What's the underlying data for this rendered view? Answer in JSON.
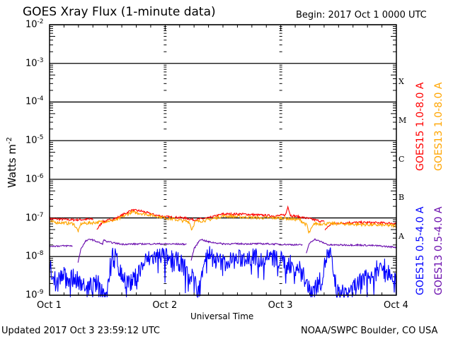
{
  "header": {
    "title": "GOES Xray Flux (1-minute data)",
    "begin": "Begin:  2017 Oct 1 0000 UTC"
  },
  "footer": {
    "updated": "Updated 2017 Oct  3 23:59:12 UTC",
    "source": "NOAA/SWPC Boulder, CO USA"
  },
  "chart_data": {
    "type": "line",
    "title": "GOES Xray Flux (1-minute data)",
    "xlabel": "Universal Time",
    "ylabel": "Watts m-2",
    "ylabel_base": "Watts m",
    "ylabel_exp": "-2",
    "xlim_hours": [
      0,
      72
    ],
    "ylim_log10": [
      -9,
      -2
    ],
    "yscale": "log",
    "x_ticks": [
      {
        "h": 0,
        "label": "Oct 1"
      },
      {
        "h": 24,
        "label": "Oct 2"
      },
      {
        "h": 48,
        "label": "Oct 3"
      },
      {
        "h": 72,
        "label": "Oct 4"
      }
    ],
    "y_ticks": [
      {
        "exp": -2,
        "base": "10",
        "sup": "-2"
      },
      {
        "exp": -3,
        "base": "10",
        "sup": "-3"
      },
      {
        "exp": -4,
        "base": "10",
        "sup": "-4"
      },
      {
        "exp": -5,
        "base": "10",
        "sup": "-5"
      },
      {
        "exp": -6,
        "base": "10",
        "sup": "-6"
      },
      {
        "exp": -7,
        "base": "10",
        "sup": "-7"
      },
      {
        "exp": -8,
        "base": "10",
        "sup": "-8"
      },
      {
        "exp": -9,
        "base": "10",
        "sup": "-9"
      }
    ],
    "flare_classes": [
      {
        "label": "X",
        "exp": -3.5
      },
      {
        "label": "M",
        "exp": -4.5
      },
      {
        "label": "C",
        "exp": -5.5
      },
      {
        "label": "B",
        "exp": -6.5
      },
      {
        "label": "A",
        "exp": -7.5
      }
    ],
    "series": [
      {
        "name": "GOES15 1.0-8.0 A",
        "color": "#ff0000",
        "noise": 0.03,
        "segments": [
          [
            [
              0,
              -7.02
            ],
            [
              5,
              -7.05
            ],
            [
              9,
              -7.03
            ]
          ],
          [
            [
              9.8,
              -7.3
            ],
            [
              11,
              -7.1
            ],
            [
              14,
              -7.0
            ],
            [
              17,
              -6.8
            ],
            [
              19,
              -6.82
            ],
            [
              22,
              -6.93
            ],
            [
              24,
              -6.97
            ],
            [
              28,
              -7.0
            ],
            [
              30,
              -7.05
            ],
            [
              33,
              -7.0
            ],
            [
              36,
              -6.9
            ],
            [
              40,
              -6.9
            ],
            [
              44,
              -6.93
            ],
            [
              47,
              -6.95
            ],
            [
              49,
              -6.92
            ],
            [
              49.5,
              -6.7
            ],
            [
              50,
              -6.93
            ],
            [
              53,
              -7.0
            ],
            [
              57,
              -7.1
            ]
          ],
          [
            [
              57.2,
              -7.3
            ],
            [
              58.5,
              -7.15
            ],
            [
              62,
              -7.12
            ],
            [
              66,
              -7.12
            ],
            [
              72,
              -7.14
            ]
          ]
        ]
      },
      {
        "name": "GOES13 1.0-8.0 A",
        "color": "#ffa500",
        "noise": 0.04,
        "segments": [
          [
            [
              0,
              -7.1
            ],
            [
              5,
              -7.15
            ],
            [
              6,
              -7.35
            ],
            [
              6.5,
              -7.15
            ],
            [
              11,
              -7.1
            ],
            [
              14,
              -7.05
            ],
            [
              17,
              -6.85
            ],
            [
              20,
              -6.9
            ],
            [
              24,
              -7.0
            ],
            [
              29,
              -7.1
            ],
            [
              29.5,
              -7.3
            ],
            [
              30.2,
              -7.1
            ],
            [
              33,
              -7.05
            ],
            [
              36,
              -6.95
            ],
            [
              44,
              -7.0
            ],
            [
              48,
              -7.0
            ],
            [
              52,
              -7.05
            ],
            [
              53.5,
              -7.2
            ],
            [
              53.8,
              -7.4
            ],
            [
              55,
              -7.15
            ],
            [
              60,
              -7.15
            ],
            [
              72,
              -7.2
            ]
          ]
        ]
      },
      {
        "name": "GOES15 0.5-4.0 A",
        "color": "#0000ff",
        "noise": 0.25,
        "segments": [
          [
            [
              0,
              -8.2
            ],
            [
              1,
              -8.6
            ],
            [
              3,
              -8.5
            ],
            [
              6,
              -8.6
            ],
            [
              8,
              -8.8
            ],
            [
              10,
              -8.7
            ],
            [
              11,
              -8.9
            ],
            [
              12,
              -9.0
            ],
            [
              12.6,
              -8.2
            ],
            [
              13,
              -7.9
            ],
            [
              14,
              -8.1
            ],
            [
              15,
              -8.5
            ],
            [
              17,
              -8.7
            ],
            [
              18,
              -8.5
            ],
            [
              20,
              -8.1
            ],
            [
              23,
              -7.95
            ],
            [
              25,
              -8.05
            ],
            [
              27,
              -8.15
            ],
            [
              29,
              -8.4
            ],
            [
              30,
              -8.6
            ],
            [
              31,
              -8.9
            ],
            [
              32,
              -8.1
            ],
            [
              33,
              -7.9
            ],
            [
              34.5,
              -8.1
            ],
            [
              36,
              -8.15
            ],
            [
              38,
              -8.1
            ],
            [
              40,
              -8.05
            ],
            [
              42,
              -8.0
            ],
            [
              44,
              -8.05
            ],
            [
              47,
              -8.05
            ],
            [
              50,
              -8.2
            ],
            [
              52,
              -8.3
            ],
            [
              53,
              -8.6
            ],
            [
              54,
              -8.9
            ],
            [
              55,
              -8.8
            ],
            [
              56.5,
              -8.6
            ],
            [
              57.5,
              -8.0
            ],
            [
              58.3,
              -7.95
            ],
            [
              59,
              -8.5
            ],
            [
              60,
              -9.0
            ],
            [
              62,
              -8.9
            ],
            [
              64,
              -8.7
            ],
            [
              66,
              -8.5
            ],
            [
              68,
              -8.3
            ],
            [
              70,
              -8.3
            ],
            [
              72,
              -8.5
            ]
          ]
        ]
      },
      {
        "name": "GOES13 0.5-4.0 A",
        "color": "#6a0dad",
        "noise": 0.02,
        "segments": [
          [
            [
              0,
              -7.73
            ],
            [
              4.7,
              -7.72
            ]
          ],
          [
            [
              5.9,
              -8.16
            ],
            [
              6.5,
              -7.8
            ],
            [
              7.5,
              -7.6
            ],
            [
              8.5,
              -7.55
            ],
            [
              10,
              -7.62
            ],
            [
              11,
              -7.68
            ],
            [
              11.2,
              -7.57
            ],
            [
              12,
              -7.62
            ],
            [
              15,
              -7.68
            ],
            [
              22,
              -7.67
            ],
            [
              28.4,
              -7.68
            ]
          ],
          [
            [
              29.4,
              -8.1
            ],
            [
              30,
              -7.8
            ],
            [
              31.3,
              -7.55
            ],
            [
              33,
              -7.62
            ],
            [
              36,
              -7.67
            ],
            [
              45,
              -7.67
            ],
            [
              52.5,
              -7.7
            ]
          ],
          [
            [
              53.3,
              -7.9
            ],
            [
              54,
              -7.65
            ],
            [
              55,
              -7.55
            ],
            [
              56,
              -7.6
            ],
            [
              58,
              -7.7
            ],
            [
              64,
              -7.7
            ],
            [
              68,
              -7.72
            ],
            [
              72,
              -7.76
            ]
          ]
        ]
      }
    ]
  }
}
